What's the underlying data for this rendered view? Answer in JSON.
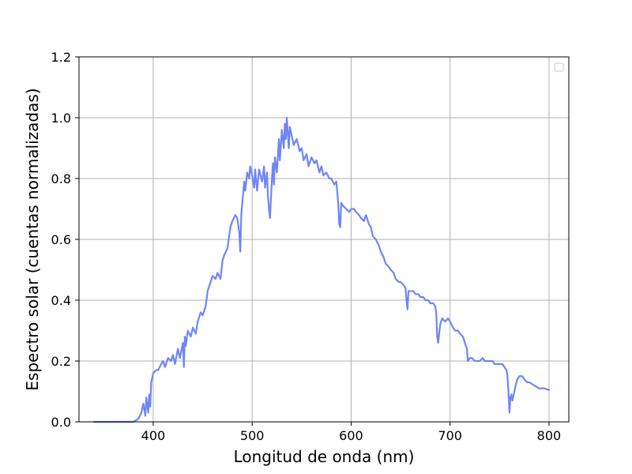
{
  "chart_data": {
    "type": "line",
    "title": "",
    "xlabel": "Longitud de onda (nm)",
    "ylabel": "Espectro solar (cuentas normalizadas)",
    "xlim": [
      325,
      820
    ],
    "ylim": [
      0,
      1.2
    ],
    "xticks": [
      400,
      500,
      600,
      700,
      800
    ],
    "yticks": [
      0.0,
      0.2,
      0.4,
      0.6,
      0.8,
      1.0,
      1.2
    ],
    "xtick_labels": [
      "400",
      "500",
      "600",
      "700",
      "800"
    ],
    "ytick_labels": [
      "0.0",
      "0.2",
      "0.4",
      "0.6",
      "0.8",
      "1.0",
      "1.2"
    ],
    "grid": true,
    "legend": "top-right (empty)",
    "colors": {
      "line": "#6f86f5"
    },
    "series": [
      {
        "x": [
          340,
          350,
          360,
          370,
          380,
          385,
          388,
          390,
          392,
          393,
          395,
          396,
          397,
          398,
          400,
          403,
          405,
          408,
          410,
          412,
          415,
          418,
          420,
          422,
          425,
          427,
          430,
          431,
          432,
          433,
          435,
          438,
          440,
          443,
          445,
          448,
          450,
          453,
          455,
          458,
          460,
          463,
          465,
          468,
          470,
          472,
          475,
          478,
          480,
          483,
          485,
          487,
          488,
          489,
          490,
          492,
          493,
          495,
          497,
          498,
          500,
          502,
          503,
          505,
          507,
          510,
          512,
          513,
          515,
          516,
          517,
          518,
          520,
          521,
          522,
          523,
          525,
          527,
          528,
          530,
          532,
          533,
          534,
          535,
          537,
          538,
          540,
          542,
          545,
          548,
          550,
          552,
          555,
          557,
          560,
          563,
          565,
          568,
          570,
          572,
          575,
          578,
          580,
          583,
          585,
          587,
          588,
          589,
          590,
          592,
          595,
          598,
          600,
          603,
          605,
          608,
          610,
          613,
          615,
          618,
          620,
          622,
          625,
          628,
          630,
          633,
          635,
          638,
          640,
          643,
          645,
          648,
          650,
          653,
          655,
          656,
          657,
          658,
          660,
          663,
          665,
          668,
          670,
          673,
          675,
          678,
          680,
          683,
          685,
          686,
          687,
          688,
          690,
          692,
          695,
          698,
          700,
          703,
          705,
          708,
          710,
          713,
          715,
          717,
          718,
          720,
          722,
          725,
          728,
          730,
          733,
          735,
          738,
          740,
          743,
          745,
          748,
          750,
          753,
          755,
          757,
          758,
          759,
          760,
          761,
          762,
          763,
          765,
          767,
          768,
          770,
          773,
          775,
          778,
          780,
          785,
          790,
          795,
          800
        ],
        "y": [
          0.0,
          0.0,
          0.0,
          0.0,
          0.0,
          0.01,
          0.03,
          0.06,
          0.02,
          0.08,
          0.03,
          0.09,
          0.05,
          0.13,
          0.16,
          0.17,
          0.17,
          0.19,
          0.2,
          0.18,
          0.21,
          0.2,
          0.22,
          0.19,
          0.24,
          0.21,
          0.26,
          0.18,
          0.28,
          0.25,
          0.3,
          0.28,
          0.31,
          0.29,
          0.33,
          0.36,
          0.35,
          0.38,
          0.43,
          0.46,
          0.48,
          0.47,
          0.49,
          0.47,
          0.53,
          0.55,
          0.57,
          0.64,
          0.66,
          0.68,
          0.67,
          0.62,
          0.56,
          0.68,
          0.72,
          0.79,
          0.76,
          0.82,
          0.8,
          0.84,
          0.81,
          0.77,
          0.83,
          0.76,
          0.83,
          0.79,
          0.84,
          0.77,
          0.82,
          0.74,
          0.7,
          0.67,
          0.8,
          0.85,
          0.78,
          0.87,
          0.82,
          0.93,
          0.86,
          0.96,
          0.9,
          0.98,
          0.93,
          1.0,
          0.9,
          0.97,
          0.94,
          0.91,
          0.93,
          0.89,
          0.9,
          0.86,
          0.88,
          0.84,
          0.87,
          0.85,
          0.86,
          0.82,
          0.84,
          0.81,
          0.82,
          0.8,
          0.8,
          0.78,
          0.79,
          0.72,
          0.65,
          0.64,
          0.72,
          0.71,
          0.7,
          0.69,
          0.7,
          0.7,
          0.69,
          0.68,
          0.67,
          0.66,
          0.68,
          0.65,
          0.64,
          0.61,
          0.6,
          0.58,
          0.56,
          0.54,
          0.52,
          0.51,
          0.5,
          0.49,
          0.47,
          0.46,
          0.46,
          0.45,
          0.44,
          0.4,
          0.37,
          0.43,
          0.43,
          0.43,
          0.42,
          0.42,
          0.41,
          0.41,
          0.4,
          0.4,
          0.39,
          0.39,
          0.38,
          0.36,
          0.28,
          0.26,
          0.32,
          0.34,
          0.33,
          0.34,
          0.33,
          0.31,
          0.3,
          0.3,
          0.29,
          0.28,
          0.26,
          0.24,
          0.2,
          0.21,
          0.21,
          0.2,
          0.2,
          0.2,
          0.21,
          0.2,
          0.2,
          0.2,
          0.2,
          0.19,
          0.19,
          0.19,
          0.19,
          0.18,
          0.17,
          0.15,
          0.1,
          0.03,
          0.08,
          0.09,
          0.07,
          0.1,
          0.13,
          0.14,
          0.15,
          0.15,
          0.14,
          0.13,
          0.13,
          0.12,
          0.11,
          0.11,
          0.105
        ]
      }
    ]
  }
}
